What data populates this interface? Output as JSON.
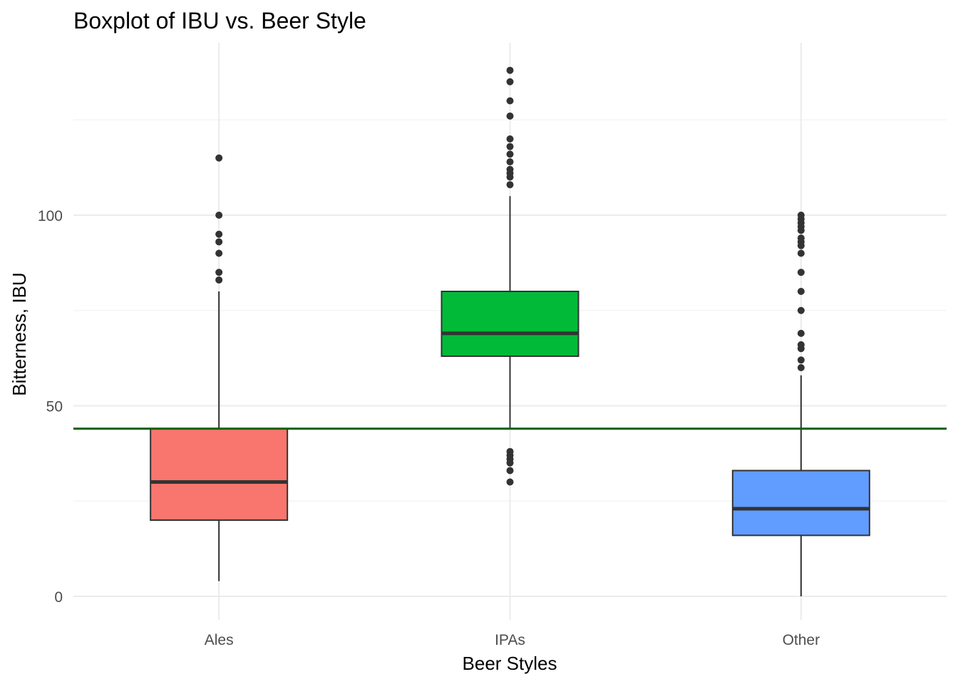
{
  "chart_data": {
    "type": "boxplot",
    "title": "Boxplot of IBU vs. Beer Style",
    "xlabel": "Beer Styles",
    "ylabel": "Bitterness, IBU",
    "categories": [
      "Ales",
      "IPAs",
      "Other"
    ],
    "ylim": [
      -6,
      145
    ],
    "yticks": [
      0,
      50,
      100
    ],
    "yticks_labels": [
      "0",
      "50",
      "100"
    ],
    "grid": true,
    "legend": "none",
    "boxes": [
      {
        "category": "Ales",
        "color": "#F8766D",
        "whisker_low": 4,
        "q1": 20,
        "median": 30,
        "q3": 44,
        "whisker_high": 80,
        "outliers": [
          83,
          85,
          90,
          93,
          95,
          100,
          115
        ]
      },
      {
        "category": "IPAs",
        "color": "#00BA38",
        "whisker_low": 44,
        "q1": 63,
        "median": 69,
        "q3": 80,
        "whisker_high": 105,
        "outliers": [
          30,
          33,
          35,
          36,
          37,
          38,
          108,
          110,
          111,
          112,
          114,
          116,
          118,
          120,
          126,
          130,
          135,
          138
        ]
      },
      {
        "category": "Other",
        "color": "#619CFF",
        "whisker_low": 0,
        "q1": 16,
        "median": 23,
        "q3": 33,
        "whisker_high": 58,
        "outliers": [
          60,
          62,
          65,
          66,
          69,
          75,
          80,
          85,
          90,
          92,
          93,
          94,
          96,
          97,
          98,
          99,
          100
        ]
      }
    ],
    "reference_line": {
      "y": 44,
      "color": "#006400"
    },
    "point_color": "#333333"
  }
}
